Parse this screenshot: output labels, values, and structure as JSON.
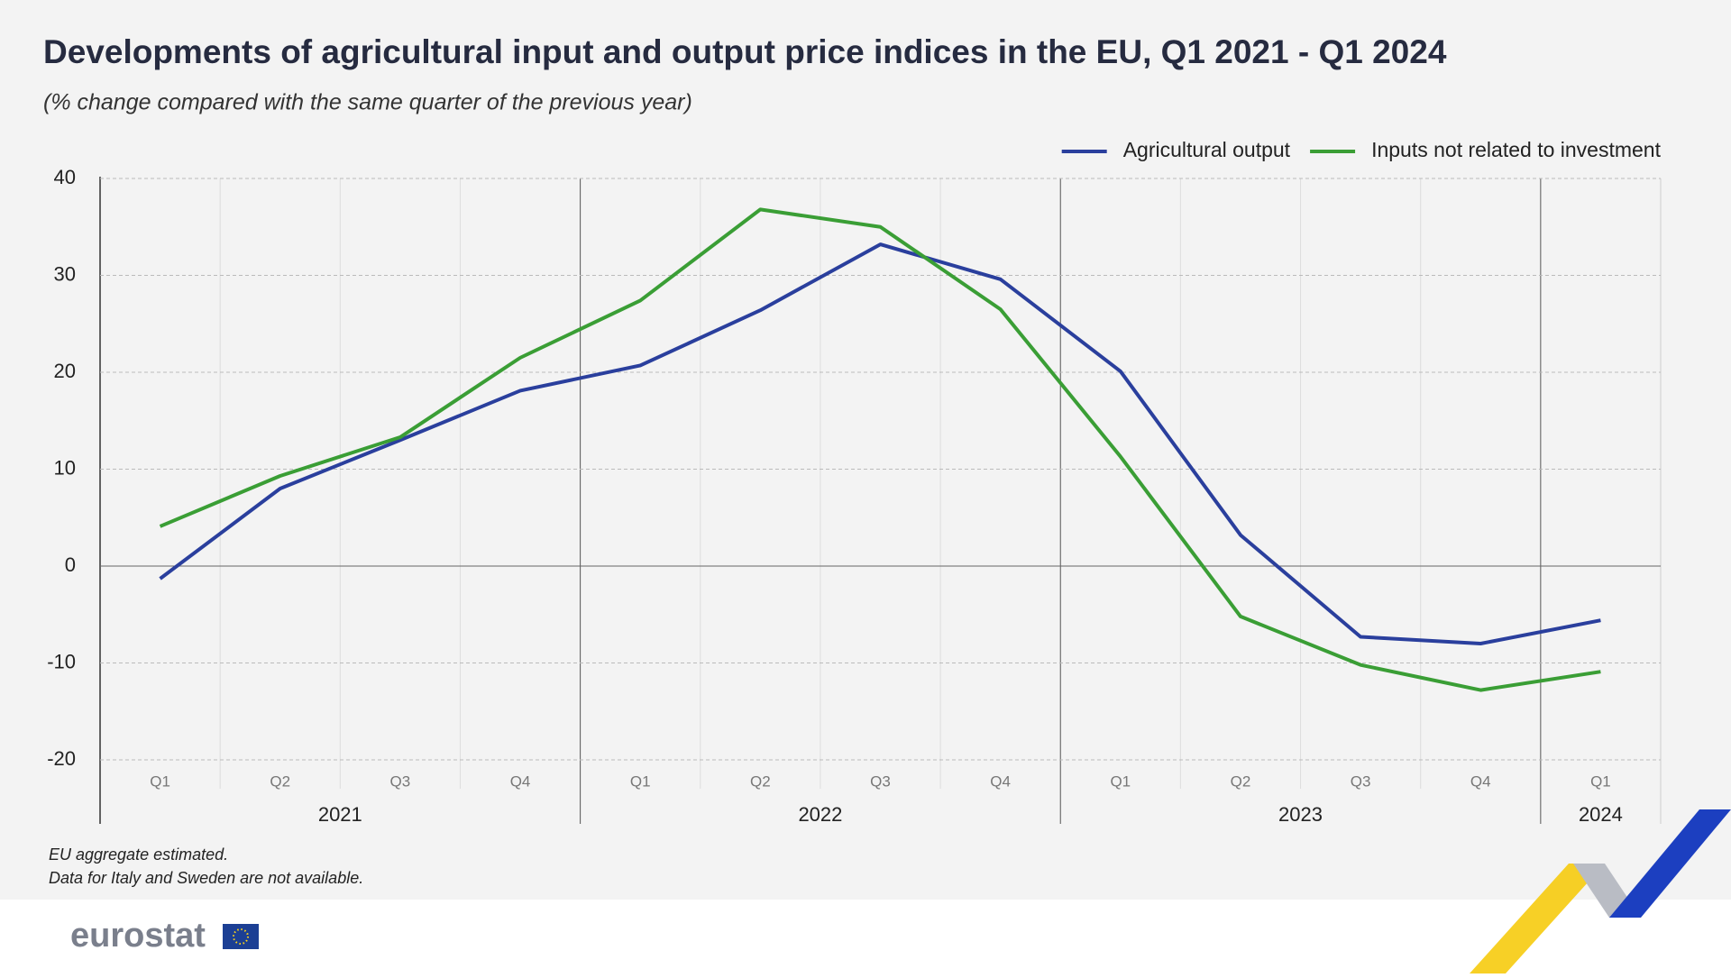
{
  "chart_data": {
    "type": "line",
    "title": "Developments of agricultural input and output price indices in the EU, Q1 2021 - Q1 2024",
    "subtitle": "(% change compared with the same quarter of the previous year)",
    "categories": [
      "Q1",
      "Q2",
      "Q3",
      "Q4",
      "Q1",
      "Q2",
      "Q3",
      "Q4",
      "Q1",
      "Q2",
      "Q3",
      "Q4",
      "Q1"
    ],
    "x_groups": [
      "2021",
      "2022",
      "2023",
      "2024"
    ],
    "series": [
      {
        "name": "Agricultural output",
        "color": "#2a3f9d",
        "values": [
          -1.3,
          8.0,
          13.0,
          18.1,
          20.7,
          26.4,
          33.2,
          29.6,
          20.1,
          3.2,
          -7.3,
          -8.0,
          -5.6
        ]
      },
      {
        "name": "Inputs not related to investment",
        "color": "#3a9e35",
        "values": [
          4.1,
          9.3,
          13.3,
          21.5,
          27.4,
          36.8,
          35.0,
          26.5,
          11.3,
          -5.2,
          -10.2,
          -12.8,
          -10.9
        ]
      }
    ],
    "ylim": [
      -20,
      40
    ],
    "yticks": [
      -20,
      -10,
      0,
      10,
      20,
      30,
      40
    ],
    "grid": true,
    "legend": "top-right",
    "notes": [
      "EU aggregate estimated.",
      "Data for Italy and Sweden are not available."
    ]
  },
  "logo": "eurostat"
}
